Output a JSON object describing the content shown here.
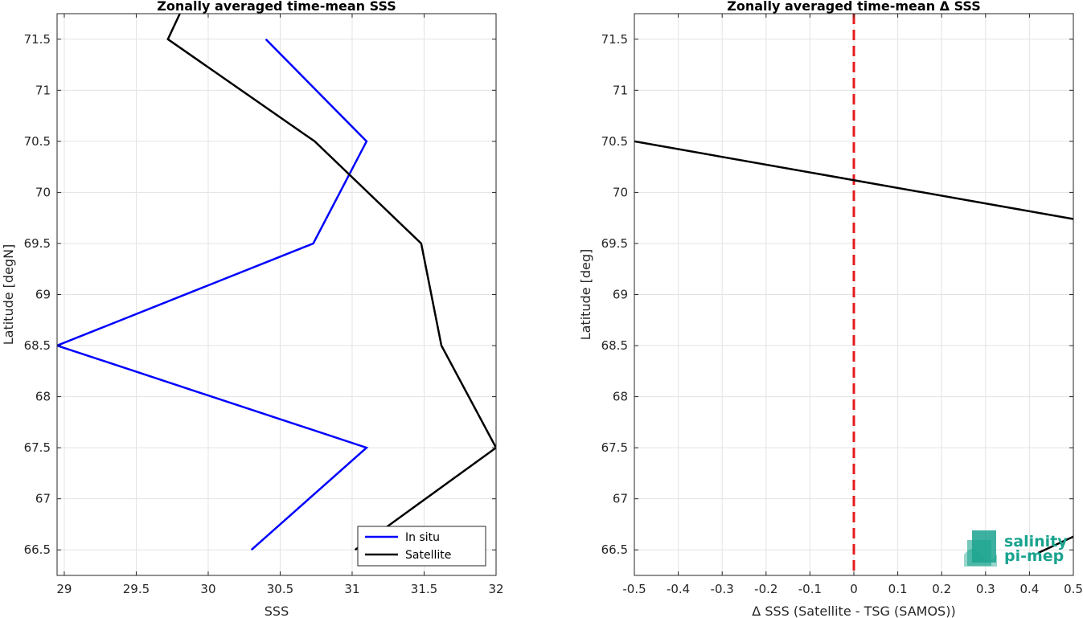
{
  "chart_data": [
    {
      "type": "line",
      "title": "Zonally averaged time-mean SSS",
      "xlabel": "SSS",
      "ylabel": "Latitude [degN]",
      "xlim": [
        28.95,
        32.0
      ],
      "ylim": [
        66.25,
        71.75
      ],
      "xticks": [
        29,
        29.5,
        30,
        30.5,
        31,
        31.5,
        32
      ],
      "yticks": [
        66.5,
        67,
        67.5,
        68,
        68.5,
        69,
        69.5,
        70,
        70.5,
        71,
        71.5
      ],
      "grid": true,
      "legend_position": "bottom-right",
      "series": [
        {
          "name": "In situ",
          "color": "#0000ff",
          "points": [
            {
              "x": 30.3,
              "y": 66.5
            },
            {
              "x": 31.1,
              "y": 67.5
            },
            {
              "x": 28.95,
              "y": 68.5
            },
            {
              "x": 30.73,
              "y": 69.5
            },
            {
              "x": 31.1,
              "y": 70.5
            },
            {
              "x": 30.4,
              "y": 71.5
            }
          ]
        },
        {
          "name": "Satellite",
          "color": "#000000",
          "points": [
            {
              "x": 31.02,
              "y": 66.5
            },
            {
              "x": 32.0,
              "y": 67.5
            },
            {
              "x": 31.62,
              "y": 68.5
            },
            {
              "x": 31.48,
              "y": 69.5
            },
            {
              "x": 30.74,
              "y": 70.5
            },
            {
              "x": 29.72,
              "y": 71.5
            },
            {
              "x": 29.82,
              "y": 71.8
            }
          ]
        }
      ]
    },
    {
      "type": "line",
      "title": "Zonally averaged time-mean Δ SSS",
      "xlabel": "Δ SSS (Satellite - TSG (SAMOS))",
      "ylabel": "Latitude [deg]",
      "xlim": [
        -0.5,
        0.5
      ],
      "ylim": [
        66.25,
        71.75
      ],
      "xticks": [
        -0.5,
        -0.4,
        -0.3,
        -0.2,
        -0.1,
        0,
        0.1,
        0.2,
        0.3,
        0.4,
        0.5
      ],
      "yticks": [
        66.5,
        67,
        67.5,
        68,
        68.5,
        69,
        69.5,
        70,
        70.5,
        71,
        71.5
      ],
      "grid": true,
      "reference_line": {
        "x": 0,
        "color": "#e41a1c",
        "style": "dashed"
      },
      "series": [
        {
          "color": "#000000",
          "points": [
            {
              "x": -0.5,
              "y": 70.5
            },
            {
              "x": 0.5,
              "y": 69.74
            }
          ]
        },
        {
          "color": "#000000",
          "points": [
            {
              "x": 0.42,
              "y": 66.47
            },
            {
              "x": 0.5,
              "y": 66.63
            }
          ]
        }
      ]
    }
  ],
  "logo": {
    "line1": "salinity",
    "line2": "pi-mep",
    "color": "#1aa38f"
  }
}
